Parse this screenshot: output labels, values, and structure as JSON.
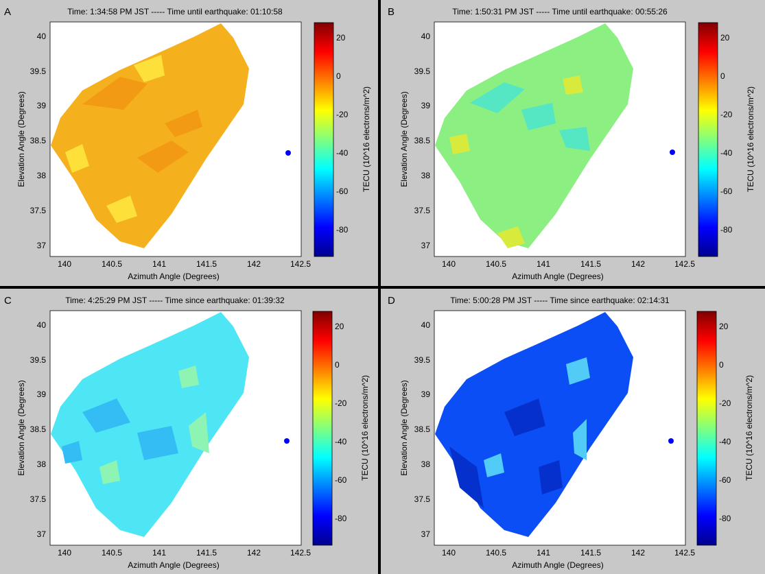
{
  "chart_data": [
    {
      "type": "heatmap",
      "panel": "A",
      "title": "Time: 1:34:58 PM JST ----- Time until earthquake: 01:10:58",
      "xlabel": "Azimuth Angle (Degrees)",
      "ylabel": "Elevation Angle (Degrees)",
      "xlim": [
        139.85,
        142.5
      ],
      "ylim": [
        36.85,
        40.2
      ],
      "xticks": [
        "140",
        "140.5",
        "141",
        "141.5",
        "142",
        "142.5"
      ],
      "yticks": [
        "37",
        "37.5",
        "38",
        "38.5",
        "39",
        "39.5",
        "40"
      ],
      "colorbar_label": "TECU (10^16 electrons/m^2)",
      "colorbar_ticks": [
        "20",
        "0",
        "-20",
        "-40",
        "-60",
        "-80"
      ],
      "clim": [
        -93,
        28
      ],
      "typical_value": -10,
      "marker_point": [
        142.37,
        38.32
      ],
      "colors": {
        "base": "#f5b01e",
        "patch": "#f39a14",
        "light": "#fde03a"
      }
    },
    {
      "type": "heatmap",
      "panel": "B",
      "title": "Time: 1:50:31 PM JST ----- Time until earthquake: 00:55:26",
      "xlabel": "Azimuth Angle (Degrees)",
      "ylabel": "Elevation Angle (Degrees)",
      "xlim": [
        139.85,
        142.5
      ],
      "ylim": [
        36.85,
        40.2
      ],
      "xticks": [
        "140",
        "140.5",
        "141",
        "141.5",
        "142",
        "142.5"
      ],
      "yticks": [
        "37",
        "37.5",
        "38",
        "38.5",
        "39",
        "39.5",
        "40"
      ],
      "colorbar_label": "TECU (10^16 electrons/m^2)",
      "colorbar_ticks": [
        "20",
        "0",
        "-20",
        "-40",
        "-60",
        "-80"
      ],
      "clim": [
        -93,
        28
      ],
      "typical_value": -35,
      "marker_point": [
        142.37,
        38.32
      ],
      "colors": {
        "base": "#8cef82",
        "patch": "#55e6c4",
        "light": "#d8ea3c"
      }
    },
    {
      "type": "heatmap",
      "panel": "C",
      "title": "Time: 4:25:29 PM JST ----- Time since earthquake: 01:39:32",
      "xlabel": "Azimuth Angle (Degrees)",
      "ylabel": "Elevation Angle (Degrees)",
      "xlim": [
        139.85,
        142.5
      ],
      "ylim": [
        36.85,
        40.2
      ],
      "xticks": [
        "140",
        "140.5",
        "141",
        "141.5",
        "142",
        "142.5"
      ],
      "yticks": [
        "37",
        "37.5",
        "38",
        "38.5",
        "39",
        "39.5",
        "40"
      ],
      "colorbar_label": "TECU (10^16 electrons/m^2)",
      "colorbar_ticks": [
        "20",
        "0",
        "-20",
        "-40",
        "-60",
        "-80"
      ],
      "clim": [
        -93,
        28
      ],
      "typical_value": -50,
      "marker_point": [
        142.37,
        38.32
      ],
      "colors": {
        "base": "#4ee6f4",
        "patch": "#33bdf4",
        "light": "#8ef4b4"
      }
    },
    {
      "type": "heatmap",
      "panel": "D",
      "title": "Time: 5:00:28 PM JST ----- Time since earthquake: 02:14:31",
      "xlabel": "Azimuth Angle (Degrees)",
      "ylabel": "Elevation Angle (Degrees)",
      "xlim": [
        139.85,
        142.5
      ],
      "ylim": [
        36.85,
        40.2
      ],
      "xticks": [
        "140",
        "140.5",
        "141",
        "141.5",
        "142",
        "142.5"
      ],
      "yticks": [
        "37",
        "37.5",
        "38",
        "38.5",
        "39",
        "39.5",
        "40"
      ],
      "colorbar_label": "TECU (10^16 electrons/m^2)",
      "colorbar_ticks": [
        "20",
        "0",
        "-20",
        "-40",
        "-60",
        "-80"
      ],
      "clim": [
        -93,
        28
      ],
      "typical_value": -75,
      "marker_point": [
        142.37,
        38.32
      ],
      "colors": {
        "base": "#0c4ef6",
        "patch": "#0630cc",
        "light": "#52ccf6"
      }
    }
  ]
}
